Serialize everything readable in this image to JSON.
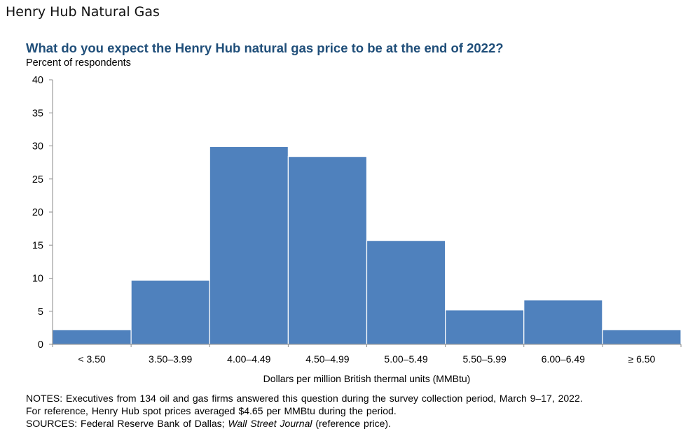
{
  "page": {
    "heading": "Henry Hub Natural Gas"
  },
  "chart_data": {
    "type": "bar",
    "title": "What do you expect the Henry Hub natural gas price to be at the end of 2022?",
    "subtitle": "Percent of respondents",
    "xlabel": "Dollars per million British thermal units (MMBtu)",
    "ylabel": "",
    "categories": [
      "< 3.50",
      "3.50–3.99",
      "4.00–4.49",
      "4.50–4.99",
      "5.00–5.49",
      "5.50–5.99",
      "6.00–6.49",
      "≥ 6.50"
    ],
    "values": [
      2.2,
      9.7,
      29.9,
      28.4,
      15.7,
      5.2,
      6.7,
      2.2
    ],
    "ylim": [
      0,
      40
    ],
    "yticks": [
      0,
      5,
      10,
      15,
      20,
      25,
      30,
      35,
      40
    ],
    "grid": false,
    "bar_color": "#4f81bd",
    "bar_edge_color": "#ffffff"
  },
  "notes": {
    "line1": "NOTES: Executives from 134 oil and gas firms answered this question during the survey collection period, March 9–17, 2022.",
    "line2": "For reference, Henry Hub spot prices averaged $4.65 per MMBtu during the period.",
    "sources_prefix": "SOURCES: Federal Reserve Bank of Dallas; ",
    "sources_italic": "Wall Street Journal",
    "sources_suffix": " (reference price)."
  }
}
